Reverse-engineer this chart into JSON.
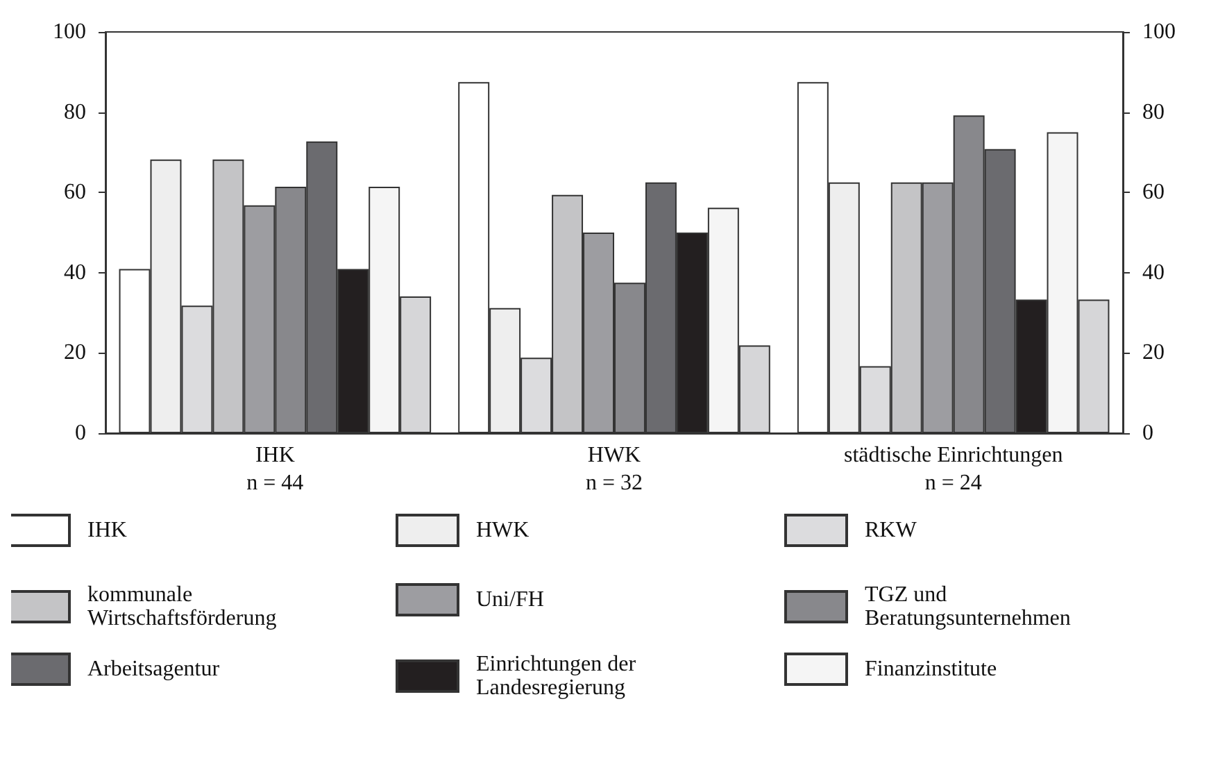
{
  "chart_data": {
    "type": "bar",
    "categories": [
      "IHK\nn = 44",
      "HWK\nn = 32",
      "städtische Einrichtungen\nn = 24"
    ],
    "series": [
      {
        "name": "IHK",
        "color": "#ffffff",
        "values": [
          40.9,
          87.5,
          87.5
        ]
      },
      {
        "name": "HWK",
        "color": "#eeeeee",
        "values": [
          68.2,
          31.2,
          62.5
        ]
      },
      {
        "name": "RKW",
        "color": "#dcdcde",
        "values": [
          31.8,
          18.8,
          16.7
        ]
      },
      {
        "name": "kommunale Wirtschaftsförderung",
        "color": "#c4c4c6",
        "values": [
          68.2,
          59.4,
          62.5
        ]
      },
      {
        "name": "Uni/FH",
        "color": "#9d9da1",
        "values": [
          56.8,
          50,
          62.5
        ]
      },
      {
        "name": "TGZ und Beratungsunternehmen",
        "color": "#88888c",
        "values": [
          61.4,
          37.5,
          79.2
        ]
      },
      {
        "name": "Arbeitsagentur",
        "color": "#6b6b6f",
        "values": [
          72.7,
          62.5,
          70.8
        ]
      },
      {
        "name": "Einrichtungen der Landesregierung",
        "color": "#231f20",
        "values": [
          40.9,
          50,
          33.3
        ]
      },
      {
        "name": "Finanzinstitute",
        "color": "#f5f5f5",
        "values": [
          61.4,
          56.2,
          75
        ]
      },
      {
        "color": "#d6d6d8",
        "values": [
          34.1,
          21.9,
          33.3
        ]
      }
    ],
    "ylim": [
      0,
      100
    ],
    "yticks": [
      0,
      20,
      40,
      60,
      80,
      100
    ],
    "y2lim": [
      0,
      100
    ],
    "y2ticks": [
      0,
      20,
      40,
      60,
      80,
      100
    ],
    "grid": false,
    "legend": "bottom"
  }
}
